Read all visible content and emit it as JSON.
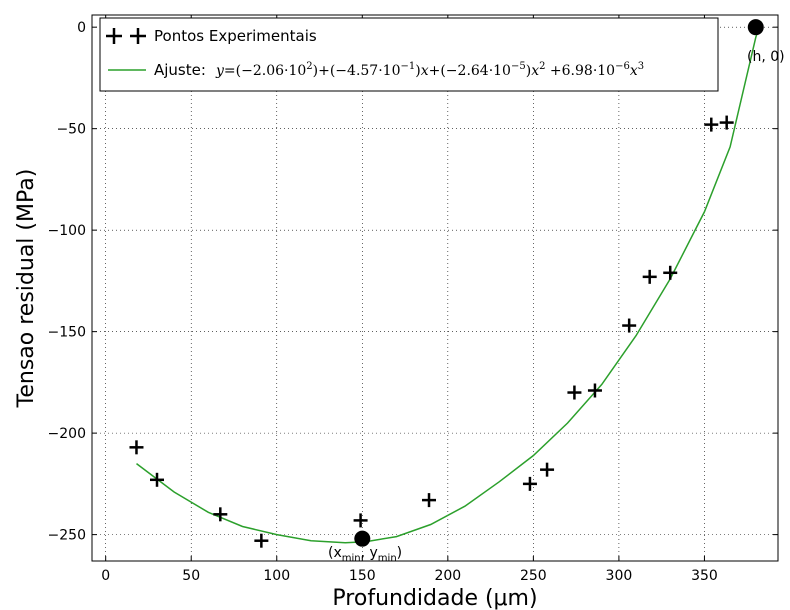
{
  "chart_data": {
    "type": "scatter",
    "xlabel": "Profundidade (μm)",
    "ylabel": "Tensao residual (MPa)",
    "xlim": [
      -8,
      393
    ],
    "ylim": [
      -263,
      6
    ],
    "xticks": [
      0,
      50,
      100,
      150,
      200,
      250,
      300,
      350
    ],
    "yticks": [
      0,
      -50,
      -100,
      -150,
      -200,
      -250
    ],
    "xtick_labels": [
      "0",
      "50",
      "100",
      "150",
      "200",
      "250",
      "300",
      "350"
    ],
    "ytick_labels": [
      "0",
      "−50",
      "−100",
      "−150",
      "−200",
      "−250"
    ],
    "grid": true,
    "legend_position": "top-left",
    "series": [
      {
        "name": "Pontos Experimentais",
        "marker": "plus",
        "color": "#000000",
        "points": [
          [
            18,
            -207
          ],
          [
            30,
            -223
          ],
          [
            67,
            -240
          ],
          [
            91,
            -253
          ],
          [
            149,
            -243
          ],
          [
            189,
            -233
          ],
          [
            248,
            -225
          ],
          [
            258,
            -218
          ],
          [
            274,
            -180
          ],
          [
            286,
            -179
          ],
          [
            306,
            -147
          ],
          [
            318,
            -123
          ],
          [
            330,
            -121
          ],
          [
            354,
            -48
          ],
          [
            363,
            -47
          ]
        ]
      },
      {
        "name": "Ajuste: y=(−2.06·10²)+(−4.57·10⁻¹)x+(−2.64·10⁻⁵)x² +6.98·10⁻⁶x³",
        "marker": "line",
        "color": "#2ca02c",
        "points": [
          [
            18,
            -215
          ],
          [
            40,
            -229
          ],
          [
            60,
            -239
          ],
          [
            80,
            -246
          ],
          [
            100,
            -250
          ],
          [
            120,
            -253
          ],
          [
            140,
            -254
          ],
          [
            152,
            -253.5
          ],
          [
            170,
            -251
          ],
          [
            190,
            -245
          ],
          [
            210,
            -236
          ],
          [
            230,
            -224
          ],
          [
            250,
            -211
          ],
          [
            270,
            -195
          ],
          [
            290,
            -176
          ],
          [
            310,
            -152
          ],
          [
            330,
            -124
          ],
          [
            350,
            -91
          ],
          [
            365,
            -59
          ],
          [
            380,
            -5
          ],
          [
            383,
            3
          ]
        ]
      }
    ],
    "annotations": [
      {
        "text": "(h, 0)",
        "x": 380,
        "y": 0
      },
      {
        "text": "(xmin, ymin)",
        "x": 150,
        "y": -252
      }
    ]
  },
  "legend": {
    "item_points_label": "Pontos Experimentais",
    "item_fit_label": "Ajuste:"
  },
  "annotations": {
    "h_zero": "(h, 0)",
    "min_open": "(x",
    "min_sub_x": "min",
    "min_comma": ", y",
    "min_sub_y": "min",
    "min_close": ")"
  },
  "colors": {
    "fit_line": "#2ca02c",
    "points": "#000000",
    "grid": "#000000"
  }
}
